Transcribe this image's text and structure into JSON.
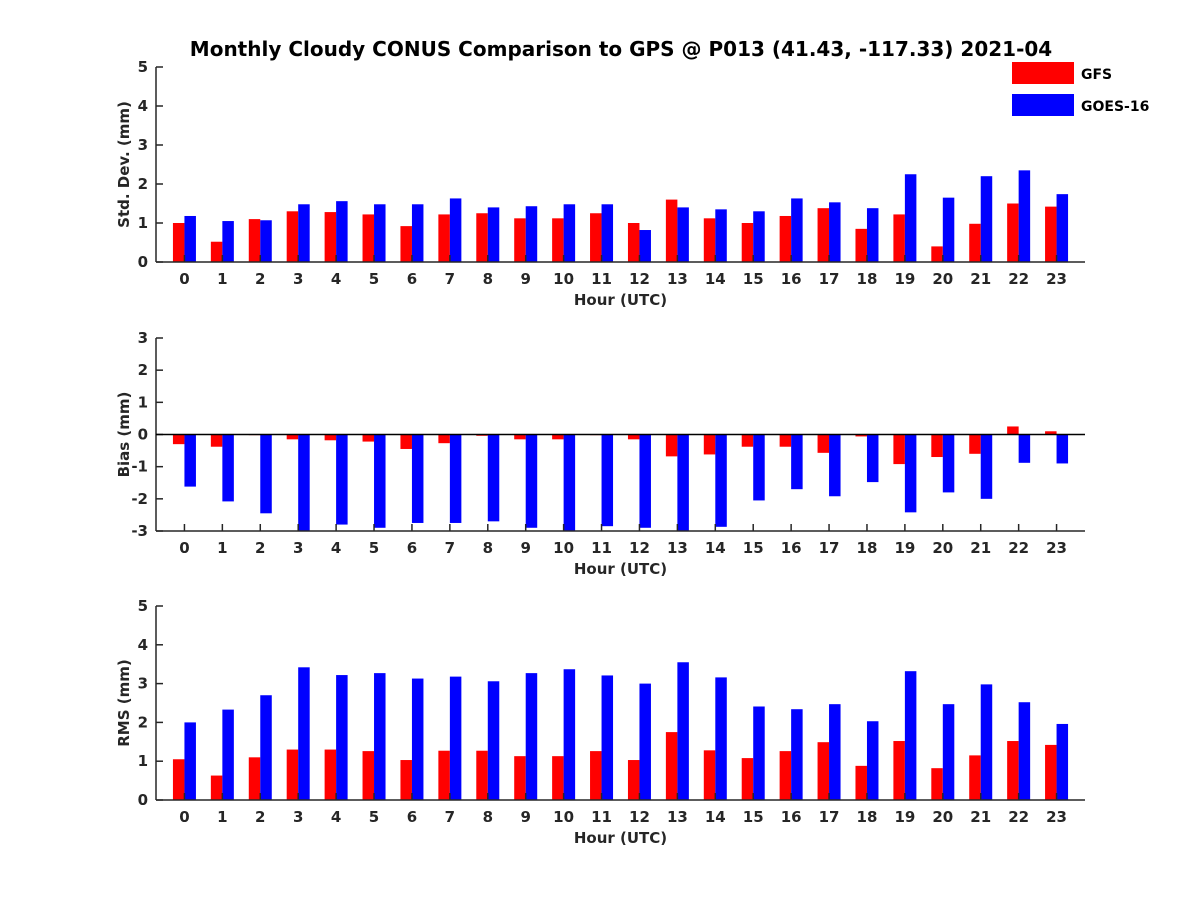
{
  "chart_data": {
    "type": "bar",
    "title": "Monthly Cloudy CONUS Comparison to GPS @ P013 (41.43, -117.33) 2021-04",
    "categories": [
      "0",
      "1",
      "2",
      "3",
      "4",
      "5",
      "6",
      "7",
      "8",
      "9",
      "10",
      "11",
      "12",
      "13",
      "14",
      "15",
      "16",
      "17",
      "18",
      "19",
      "20",
      "21",
      "22",
      "23"
    ],
    "legend": {
      "placement": "top-right",
      "entries": [
        {
          "name": "GFS",
          "color": "#ff0000"
        },
        {
          "name": "GOES-16",
          "color": "#0000ff"
        }
      ]
    },
    "panels": [
      {
        "key": "std",
        "ylabel": "Std. Dev. (mm)",
        "xlabel": "Hour (UTC)",
        "ylim": [
          0,
          5
        ],
        "yticks": [
          "0",
          "1",
          "2",
          "3",
          "4",
          "5"
        ],
        "series": [
          {
            "name": "GFS",
            "color": "#ff0000",
            "values": [
              1.0,
              0.52,
              1.1,
              1.3,
              1.28,
              1.22,
              0.92,
              1.22,
              1.25,
              1.12,
              1.12,
              1.25,
              1.0,
              1.6,
              1.12,
              1.0,
              1.18,
              1.38,
              0.85,
              1.22,
              0.4,
              0.98,
              1.5,
              1.42
            ]
          },
          {
            "name": "GOES-16",
            "color": "#0000ff",
            "values": [
              1.18,
              1.05,
              1.07,
              1.48,
              1.56,
              1.48,
              1.48,
              1.63,
              1.4,
              1.43,
              1.48,
              1.48,
              0.82,
              1.4,
              1.35,
              1.3,
              1.63,
              1.53,
              1.38,
              2.25,
              1.65,
              2.2,
              2.35,
              1.74
            ]
          }
        ]
      },
      {
        "key": "bias",
        "ylabel": "Bias (mm)",
        "xlabel": "Hour (UTC)",
        "ylim": [
          -3,
          3
        ],
        "yticks": [
          "-3",
          "-2",
          "-1",
          "0",
          "1",
          "2",
          "3"
        ],
        "series": [
          {
            "name": "GFS",
            "color": "#ff0000",
            "values": [
              -0.3,
              -0.38,
              -0.02,
              -0.15,
              -0.18,
              -0.22,
              -0.45,
              -0.27,
              -0.04,
              -0.15,
              -0.15,
              -0.02,
              -0.15,
              -0.68,
              -0.62,
              -0.38,
              -0.38,
              -0.57,
              -0.06,
              -0.92,
              -0.7,
              -0.6,
              0.25,
              0.1
            ]
          },
          {
            "name": "GOES-16",
            "color": "#0000ff",
            "values": [
              -1.62,
              -2.08,
              -2.45,
              -3.0,
              -2.8,
              -2.9,
              -2.75,
              -2.75,
              -2.7,
              -2.9,
              -3.0,
              -2.85,
              -2.9,
              -3.0,
              -2.87,
              -2.05,
              -1.7,
              -1.92,
              -1.48,
              -2.42,
              -1.8,
              -2.0,
              -0.88,
              -0.9
            ]
          }
        ]
      },
      {
        "key": "rms",
        "ylabel": "RMS (mm)",
        "xlabel": "Hour (UTC)",
        "ylim": [
          0,
          5
        ],
        "yticks": [
          "0",
          "1",
          "2",
          "3",
          "4",
          "5"
        ],
        "series": [
          {
            "name": "GFS",
            "color": "#ff0000",
            "values": [
              1.05,
              0.63,
              1.1,
              1.3,
              1.3,
              1.26,
              1.03,
              1.27,
              1.27,
              1.13,
              1.13,
              1.26,
              1.03,
              1.75,
              1.28,
              1.08,
              1.26,
              1.49,
              0.88,
              1.52,
              0.82,
              1.15,
              1.52,
              1.42
            ]
          },
          {
            "name": "GOES-16",
            "color": "#0000ff",
            "values": [
              2.0,
              2.33,
              2.7,
              3.42,
              3.22,
              3.27,
              3.13,
              3.18,
              3.06,
              3.27,
              3.37,
              3.21,
              3.0,
              3.55,
              3.16,
              2.41,
              2.34,
              2.47,
              2.03,
              3.32,
              2.47,
              2.98,
              2.52,
              1.96
            ]
          }
        ]
      }
    ]
  }
}
